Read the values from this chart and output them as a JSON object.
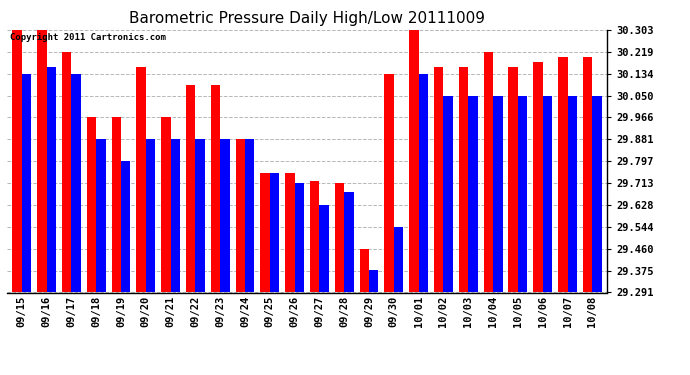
{
  "title": "Barometric Pressure Daily High/Low 20111009",
  "copyright": "Copyright 2011 Cartronics.com",
  "categories": [
    "09/15",
    "09/16",
    "09/17",
    "09/18",
    "09/19",
    "09/20",
    "09/21",
    "09/22",
    "09/23",
    "09/24",
    "09/25",
    "09/26",
    "09/27",
    "09/28",
    "09/29",
    "09/30",
    "10/01",
    "10/02",
    "10/03",
    "10/04",
    "10/05",
    "10/06",
    "10/07",
    "10/08"
  ],
  "highs": [
    30.303,
    30.303,
    30.219,
    29.966,
    29.966,
    30.16,
    29.966,
    30.09,
    30.09,
    29.881,
    29.75,
    29.75,
    29.72,
    29.713,
    29.46,
    30.134,
    30.303,
    30.16,
    30.16,
    30.219,
    30.16,
    30.18,
    30.2,
    30.2
  ],
  "lows": [
    30.134,
    30.16,
    30.134,
    29.881,
    29.797,
    29.881,
    29.881,
    29.881,
    29.881,
    29.881,
    29.75,
    29.713,
    29.628,
    29.68,
    29.376,
    29.544,
    30.134,
    30.05,
    30.05,
    30.05,
    30.05,
    30.05,
    30.05,
    30.05
  ],
  "ylim_min": 29.291,
  "ylim_max": 30.303,
  "yticks": [
    29.291,
    29.375,
    29.46,
    29.544,
    29.628,
    29.713,
    29.797,
    29.881,
    29.966,
    30.05,
    30.134,
    30.219,
    30.303
  ],
  "high_color": "#FF0000",
  "low_color": "#0000FF",
  "bg_color": "#FFFFFF",
  "grid_color": "#888888",
  "title_fontsize": 11,
  "bar_width": 0.38,
  "figwidth": 6.9,
  "figheight": 3.75,
  "dpi": 100
}
